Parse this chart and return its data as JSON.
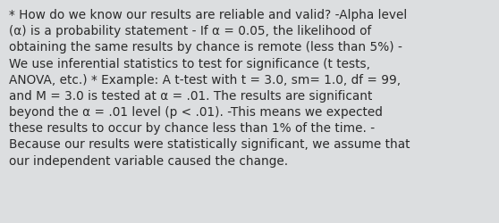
{
  "text": "* How do we know our results are reliable and valid? -Alpha level\n(α) is a probability statement - If α = 0.05, the likelihood of\nobtaining the same results by chance is remote (less than 5%) -\nWe use inferential statistics to test for significance (t tests,\nANOVA, etc.) * Example: A t-test with t = 3.0, sm= 1.0, df = 99,\nand M = 3.0 is tested at α = .01. The results are significant\nbeyond the α = .01 level (p < .01). -This means we expected\nthese results to occur by chance less than 1% of the time. -\nBecause our results were statistically significant, we assume that\nour independent variable caused the change.",
  "background_color": "#dcdee0",
  "text_color": "#2a2a2a",
  "font_size": 9.8,
  "font_family": "DejaVu Sans",
  "fig_width": 5.58,
  "fig_height": 2.51,
  "dpi": 100
}
